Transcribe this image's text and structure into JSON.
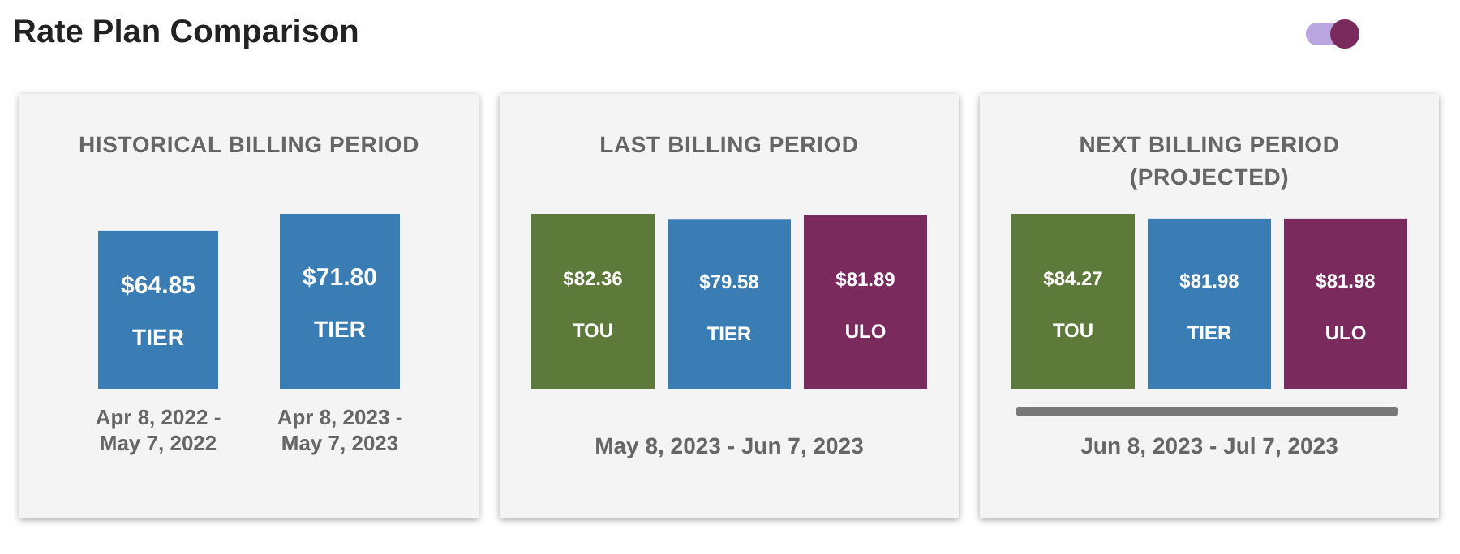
{
  "chart_data": [
    {
      "type": "other",
      "title": "Rate Plan Comparison"
    },
    {
      "type": "bar",
      "title": "HISTORICAL BILLING PERIOD",
      "categories": [
        "Apr 8, 2022 - May 7, 2022",
        "Apr 8, 2023 - May 7, 2023"
      ],
      "values": [
        64.85,
        71.8
      ],
      "colors": [
        "#3a7db5",
        "#3a7db5"
      ],
      "value_labels": [
        "$64.85",
        "$71.80"
      ],
      "annotations": [
        "TIER",
        "TIER"
      ]
    },
    {
      "type": "bar",
      "title": "LAST BILLING PERIOD",
      "xlabel": "May 8, 2023 - Jun 7, 2023",
      "categories": [
        "TOU",
        "TIER",
        "ULO"
      ],
      "values": [
        82.36,
        79.58,
        81.89
      ],
      "colors": [
        "#5e7a3a",
        "#3a7db5",
        "#7b2a5e"
      ],
      "value_labels": [
        "$82.36",
        "$79.58",
        "$81.89"
      ]
    },
    {
      "type": "bar",
      "title": "NEXT BILLING PERIOD (PROJECTED)",
      "xlabel": "Jun 8, 2023 - Jul 7, 2023",
      "categories": [
        "TOU",
        "TIER",
        "ULO"
      ],
      "values": [
        84.27,
        81.98,
        81.98
      ],
      "colors": [
        "#5e7a3a",
        "#3a7db5",
        "#7b2a5e"
      ],
      "value_labels": [
        "$84.27",
        "$81.98",
        "$81.98"
      ]
    }
  ]
}
